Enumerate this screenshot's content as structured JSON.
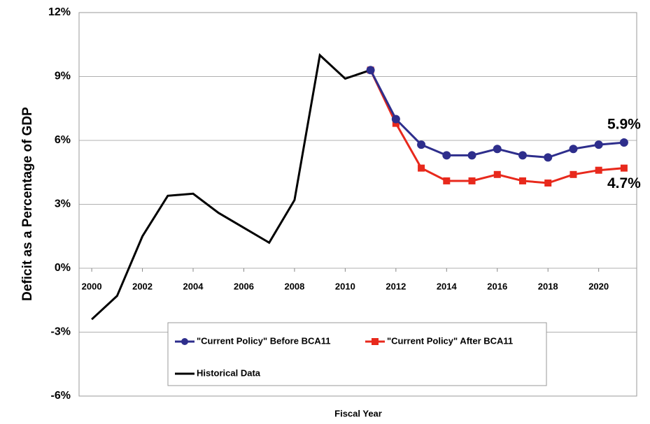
{
  "chart_data": {
    "type": "line",
    "x_label": "Fiscal Year",
    "y_label": "Deficit as a Percentage of GDP",
    "xlim": [
      1999.5,
      2021.5
    ],
    "xticks": [
      2000,
      2002,
      2004,
      2006,
      2008,
      2010,
      2012,
      2014,
      2016,
      2018,
      2020
    ],
    "ylim": [
      -6,
      12
    ],
    "yticks": [
      {
        "value": -6,
        "label": "-6%"
      },
      {
        "value": -3,
        "label": "-3%"
      },
      {
        "value": 0,
        "label": "0%"
      },
      {
        "value": 3,
        "label": "3%"
      },
      {
        "value": 6,
        "label": "6%"
      },
      {
        "value": 9,
        "label": "9%"
      },
      {
        "value": 12,
        "label": "12%"
      }
    ],
    "grid": true,
    "series": [
      {
        "name": "\"Current Policy\" Before BCA11",
        "color": "#2e2e8c",
        "marker": "circle",
        "x": [
          2011,
          2012,
          2013,
          2014,
          2015,
          2016,
          2017,
          2018,
          2019,
          2020,
          2021
        ],
        "values": [
          9.3,
          7.0,
          5.8,
          5.3,
          5.3,
          5.6,
          5.3,
          5.2,
          5.6,
          5.8,
          5.9
        ],
        "value_labels": [
          null,
          null,
          null,
          null,
          null,
          null,
          null,
          null,
          null,
          null,
          "5.9%"
        ]
      },
      {
        "name": "\"Current Policy\" After BCA11",
        "color": "#e8291c",
        "marker": "square",
        "x": [
          2011,
          2012,
          2013,
          2014,
          2015,
          2016,
          2017,
          2018,
          2019,
          2020,
          2021
        ],
        "values": [
          9.3,
          6.8,
          4.7,
          4.1,
          4.1,
          4.4,
          4.1,
          4.0,
          4.4,
          4.6,
          4.7
        ],
        "value_labels": [
          null,
          null,
          null,
          null,
          null,
          null,
          null,
          null,
          null,
          null,
          "4.7%"
        ]
      },
      {
        "name": "Historical Data",
        "color": "#000000",
        "marker": "none",
        "x": [
          2000,
          2001,
          2002,
          2003,
          2004,
          2005,
          2006,
          2007,
          2008,
          2009,
          2010,
          2011
        ],
        "values": [
          -2.4,
          -1.3,
          1.5,
          3.4,
          3.5,
          2.6,
          1.9,
          1.2,
          3.2,
          10.0,
          8.9,
          9.3
        ]
      }
    ]
  }
}
